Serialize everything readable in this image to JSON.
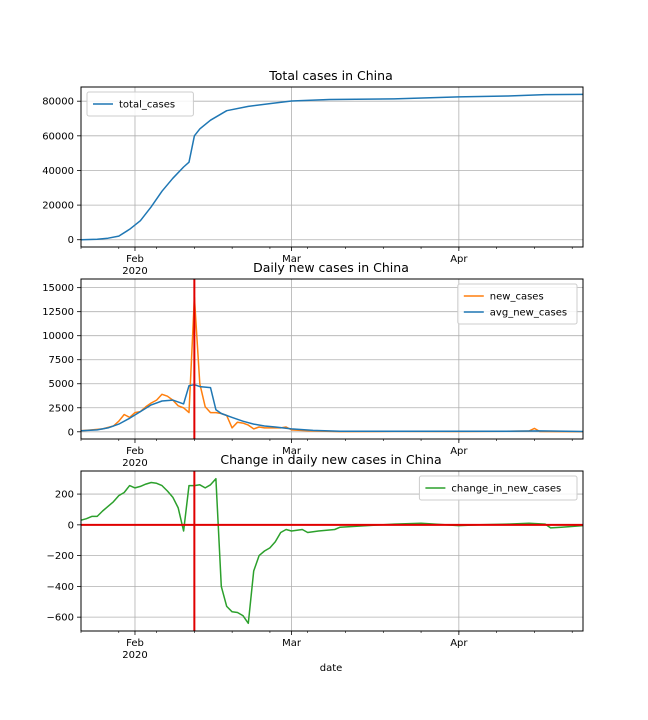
{
  "colors": {
    "blue": "#1f77b4",
    "orange": "#ff7f0e",
    "green": "#2ca02c",
    "red": "#e00000",
    "grid": "#b0b0b0"
  },
  "x_axis": {
    "ticks": [
      {
        "date": "2020-02-01",
        "label": "Feb",
        "sublabel": "2020"
      },
      {
        "date": "2020-03-01",
        "label": "Mar",
        "sublabel": ""
      },
      {
        "date": "2020-04-01",
        "label": "Apr",
        "sublabel": ""
      }
    ],
    "xlabel": "date"
  },
  "chart_data": [
    {
      "type": "line",
      "title": "Total cases in China",
      "xlabel": "",
      "ylabel": "",
      "xlim": [
        "2020-01-22",
        "2020-04-24"
      ],
      "ylim": [
        -4200,
        88200
      ],
      "yticks": [
        0,
        20000,
        40000,
        60000,
        80000
      ],
      "grid": true,
      "legend": "top-left",
      "series": [
        {
          "name": "total_cases",
          "color": "#1f77b4",
          "points": [
            [
              "2020-01-22",
              0
            ],
            [
              "2020-01-25",
              300
            ],
            [
              "2020-01-27",
              900
            ],
            [
              "2020-01-29",
              2100
            ],
            [
              "2020-01-31",
              6000
            ],
            [
              "2020-02-02",
              11000
            ],
            [
              "2020-02-04",
              19000
            ],
            [
              "2020-02-06",
              28000
            ],
            [
              "2020-02-08",
              35500
            ],
            [
              "2020-02-10",
              42000
            ],
            [
              "2020-02-11",
              44800
            ],
            [
              "2020-02-12",
              60000
            ],
            [
              "2020-02-13",
              64000
            ],
            [
              "2020-02-15",
              69000
            ],
            [
              "2020-02-18",
              74500
            ],
            [
              "2020-02-22",
              77000
            ],
            [
              "2020-02-26",
              78600
            ],
            [
              "2020-03-01",
              80100
            ],
            [
              "2020-03-08",
              81000
            ],
            [
              "2020-03-20",
              81300
            ],
            [
              "2020-04-01",
              82500
            ],
            [
              "2020-04-10",
              83000
            ],
            [
              "2020-04-17",
              83800
            ],
            [
              "2020-04-24",
              83900
            ]
          ]
        }
      ]
    },
    {
      "type": "line",
      "title": "Daily new cases in China",
      "xlabel": "",
      "ylabel": "",
      "xlim": [
        "2020-01-22",
        "2020-04-24"
      ],
      "ylim": [
        -750,
        15900
      ],
      "yticks": [
        0,
        2500,
        5000,
        7500,
        10000,
        12500,
        15000
      ],
      "grid": true,
      "legend": "top-right",
      "vline": "2020-02-12",
      "series": [
        {
          "name": "new_cases",
          "color": "#ff7f0e",
          "points": [
            [
              "2020-01-22",
              100
            ],
            [
              "2020-01-24",
              200
            ],
            [
              "2020-01-26",
              300
            ],
            [
              "2020-01-28",
              600
            ],
            [
              "2020-01-29",
              1100
            ],
            [
              "2020-01-30",
              1800
            ],
            [
              "2020-01-31",
              1500
            ],
            [
              "2020-02-01",
              2000
            ],
            [
              "2020-02-02",
              2100
            ],
            [
              "2020-02-03",
              2600
            ],
            [
              "2020-02-04",
              3000
            ],
            [
              "2020-02-05",
              3300
            ],
            [
              "2020-02-06",
              3900
            ],
            [
              "2020-02-07",
              3700
            ],
            [
              "2020-02-08",
              3300
            ],
            [
              "2020-02-09",
              2700
            ],
            [
              "2020-02-10",
              2500
            ],
            [
              "2020-02-11",
              2000
            ],
            [
              "2020-02-12",
              14000
            ],
            [
              "2020-02-13",
              5000
            ],
            [
              "2020-02-14",
              2600
            ],
            [
              "2020-02-15",
              2000
            ],
            [
              "2020-02-16",
              2000
            ],
            [
              "2020-02-17",
              1900
            ],
            [
              "2020-02-18",
              1700
            ],
            [
              "2020-02-19",
              400
            ],
            [
              "2020-02-20",
              1000
            ],
            [
              "2020-02-21",
              900
            ],
            [
              "2020-02-22",
              700
            ],
            [
              "2020-02-23",
              300
            ],
            [
              "2020-02-24",
              500
            ],
            [
              "2020-02-25",
              400
            ],
            [
              "2020-02-26",
              400
            ],
            [
              "2020-02-28",
              400
            ],
            [
              "2020-02-29",
              500
            ],
            [
              "2020-03-01",
              200
            ],
            [
              "2020-03-04",
              100
            ],
            [
              "2020-03-10",
              20
            ],
            [
              "2020-03-20",
              40
            ],
            [
              "2020-04-01",
              35
            ],
            [
              "2020-04-10",
              50
            ],
            [
              "2020-04-14",
              80
            ],
            [
              "2020-04-15",
              350
            ],
            [
              "2020-04-16",
              30
            ],
            [
              "2020-04-24",
              10
            ]
          ]
        },
        {
          "name": "avg_new_cases",
          "color": "#1f77b4",
          "points": [
            [
              "2020-01-22",
              100
            ],
            [
              "2020-01-25",
              200
            ],
            [
              "2020-01-27",
              400
            ],
            [
              "2020-01-29",
              800
            ],
            [
              "2020-01-31",
              1400
            ],
            [
              "2020-02-02",
              2100
            ],
            [
              "2020-02-04",
              2800
            ],
            [
              "2020-02-06",
              3200
            ],
            [
              "2020-02-08",
              3300
            ],
            [
              "2020-02-10",
              2900
            ],
            [
              "2020-02-11",
              4800
            ],
            [
              "2020-02-12",
              4900
            ],
            [
              "2020-02-13",
              4700
            ],
            [
              "2020-02-15",
              4600
            ],
            [
              "2020-02-16",
              2300
            ],
            [
              "2020-02-17",
              1900
            ],
            [
              "2020-02-19",
              1500
            ],
            [
              "2020-02-21",
              1100
            ],
            [
              "2020-02-23",
              800
            ],
            [
              "2020-02-25",
              600
            ],
            [
              "2020-02-27",
              500
            ],
            [
              "2020-03-01",
              300
            ],
            [
              "2020-03-05",
              150
            ],
            [
              "2020-03-10",
              60
            ],
            [
              "2020-03-20",
              60
            ],
            [
              "2020-04-01",
              55
            ],
            [
              "2020-04-10",
              60
            ],
            [
              "2020-04-16",
              90
            ],
            [
              "2020-04-24",
              30
            ]
          ]
        }
      ]
    },
    {
      "type": "line",
      "title": "Change in daily new cases in China",
      "xlabel": "date",
      "ylabel": "",
      "xlim": [
        "2020-01-22",
        "2020-04-24"
      ],
      "ylim": [
        -690,
        350
      ],
      "yticks": [
        -600,
        -400,
        -200,
        0,
        200
      ],
      "grid": true,
      "legend": "top-right",
      "vline": "2020-02-12",
      "hline": 0,
      "series": [
        {
          "name": "change_in_new_cases",
          "color": "#2ca02c",
          "points": [
            [
              "2020-01-22",
              30
            ],
            [
              "2020-01-23",
              40
            ],
            [
              "2020-01-24",
              55
            ],
            [
              "2020-01-25",
              55
            ],
            [
              "2020-01-26",
              90
            ],
            [
              "2020-01-28",
              150
            ],
            [
              "2020-01-29",
              190
            ],
            [
              "2020-01-30",
              210
            ],
            [
              "2020-01-31",
              255
            ],
            [
              "2020-02-01",
              240
            ],
            [
              "2020-02-02",
              250
            ],
            [
              "2020-02-03",
              265
            ],
            [
              "2020-02-04",
              275
            ],
            [
              "2020-02-05",
              270
            ],
            [
              "2020-02-06",
              255
            ],
            [
              "2020-02-07",
              220
            ],
            [
              "2020-02-08",
              180
            ],
            [
              "2020-02-09",
              110
            ],
            [
              "2020-02-10",
              -40
            ],
            [
              "2020-02-11",
              255
            ],
            [
              "2020-02-12",
              255
            ],
            [
              "2020-02-13",
              260
            ],
            [
              "2020-02-14",
              240
            ],
            [
              "2020-02-15",
              260
            ],
            [
              "2020-02-16",
              300
            ],
            [
              "2020-02-17",
              -400
            ],
            [
              "2020-02-18",
              -530
            ],
            [
              "2020-02-19",
              -565
            ],
            [
              "2020-02-20",
              -570
            ],
            [
              "2020-02-21",
              -590
            ],
            [
              "2020-02-22",
              -640
            ],
            [
              "2020-02-23",
              -300
            ],
            [
              "2020-02-24",
              -200
            ],
            [
              "2020-02-25",
              -170
            ],
            [
              "2020-02-26",
              -150
            ],
            [
              "2020-02-27",
              -110
            ],
            [
              "2020-02-28",
              -50
            ],
            [
              "2020-02-29",
              -30
            ],
            [
              "2020-03-01",
              -40
            ],
            [
              "2020-03-03",
              -30
            ],
            [
              "2020-03-04",
              -50
            ],
            [
              "2020-03-06",
              -40
            ],
            [
              "2020-03-09",
              -30
            ],
            [
              "2020-03-10",
              -15
            ],
            [
              "2020-03-15",
              -5
            ],
            [
              "2020-03-20",
              5
            ],
            [
              "2020-03-25",
              10
            ],
            [
              "2020-04-01",
              -5
            ],
            [
              "2020-04-05",
              0
            ],
            [
              "2020-04-10",
              5
            ],
            [
              "2020-04-14",
              10
            ],
            [
              "2020-04-17",
              5
            ],
            [
              "2020-04-18",
              -20
            ],
            [
              "2020-04-20",
              -15
            ],
            [
              "2020-04-24",
              -5
            ]
          ]
        }
      ]
    }
  ]
}
